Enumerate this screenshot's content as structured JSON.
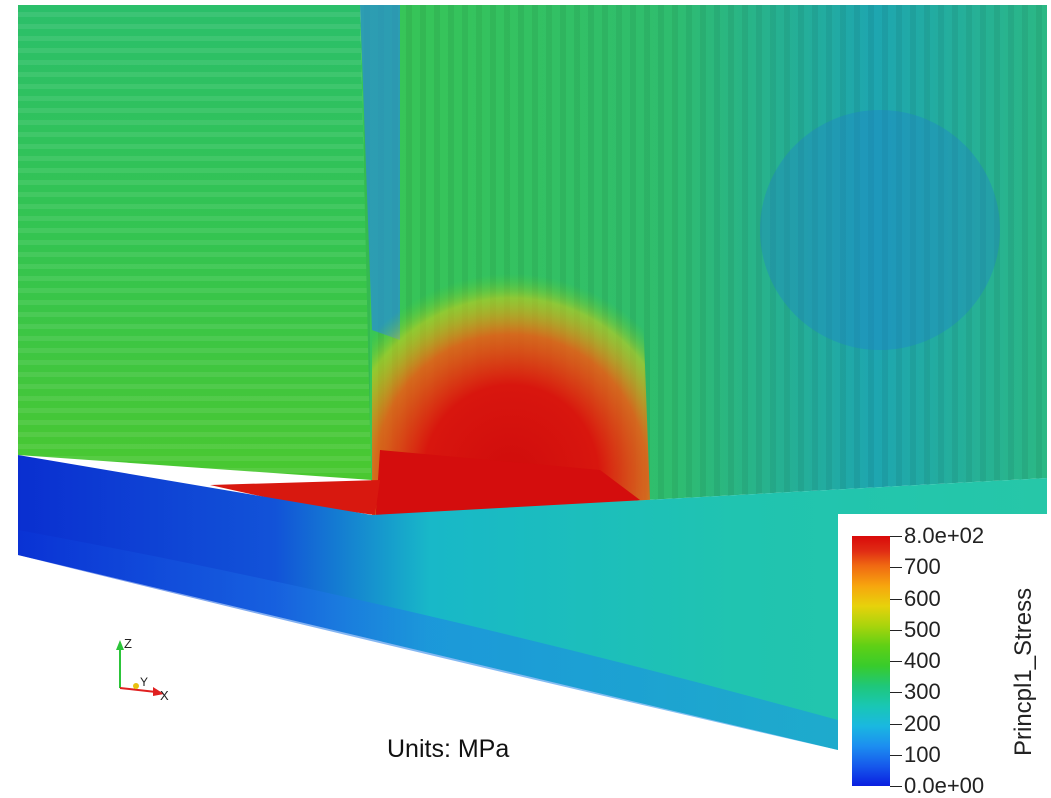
{
  "units_label": "Units: MPa",
  "axes_triad": {
    "z": "Z",
    "y": "Y",
    "x": "X"
  },
  "legend": {
    "title": "Princpl1_Stress",
    "range": [
      0,
      800
    ],
    "ticks": [
      "8.0e+02",
      "700",
      "600",
      "500",
      "400",
      "300",
      "200",
      "100",
      "0.0e+00"
    ]
  },
  "colors": {
    "colormap_low": "#0a1fe0",
    "colormap_mid": "#38cc2c",
    "colormap_high": "#d90a0a"
  }
}
